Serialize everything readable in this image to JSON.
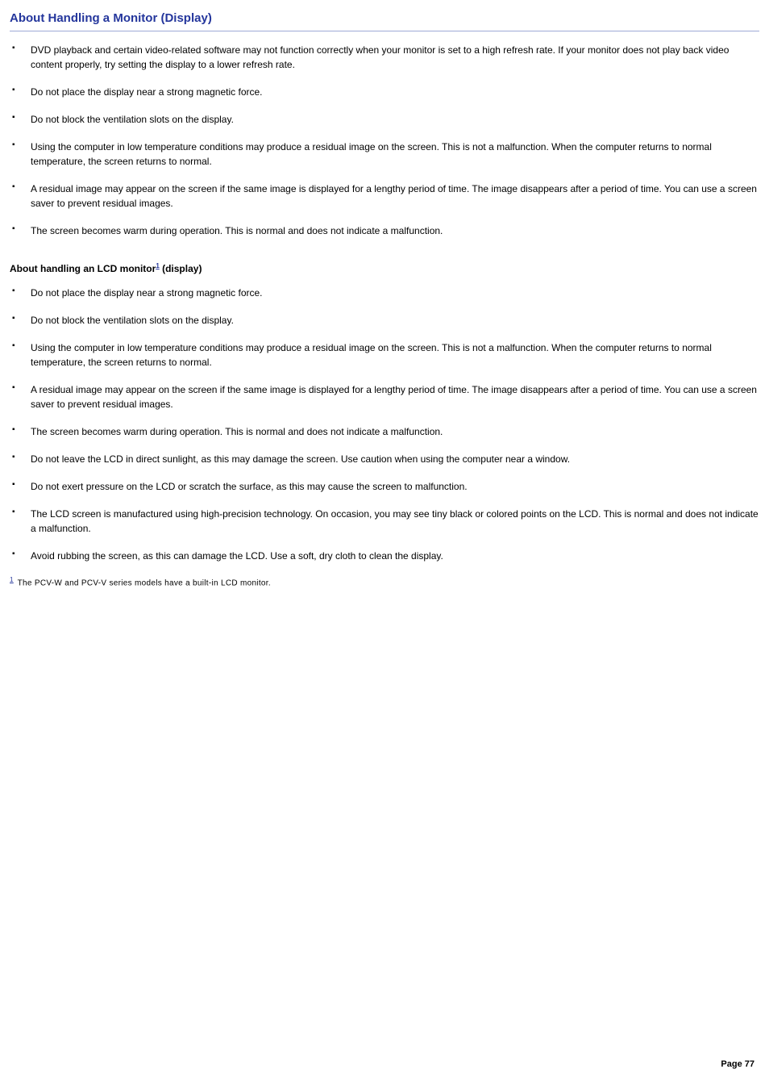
{
  "colors": {
    "heading": "#24369c",
    "rule": "#9fa9d6",
    "supLink": "#24369c",
    "bodyText": "#000000",
    "background": "#ffffff"
  },
  "heading": "About Handling a Monitor (Display)",
  "section1": {
    "items": [
      "DVD playback and certain video-related software may not function correctly when your monitor is set to a high refresh rate. If your monitor does not play back video content properly, try setting the display to a lower refresh rate.",
      "Do not place the display near a strong magnetic force.",
      "Do not block the ventilation slots on the display.",
      "Using the computer in low temperature conditions may produce a residual image on the screen. This is not a malfunction. When the computer returns to normal temperature, the screen returns to normal.",
      "A residual image may appear on the screen if the same image is displayed for a lengthy period of time. The image disappears after a period of time. You can use a screen saver to prevent residual images.",
      "The screen becomes warm during operation. This is normal and does not indicate a malfunction."
    ]
  },
  "subHeading": {
    "prefix": "About handling an LCD monitor",
    "supMarker": "1",
    "suffix": " (display)"
  },
  "section2": {
    "items": [
      "Do not place the display near a strong magnetic force.",
      "Do not block the ventilation slots on the display.",
      "Using the computer in low temperature conditions may produce a residual image on the screen. This is not a malfunction. When the computer returns to normal temperature, the screen returns to normal.",
      "A residual image may appear on the screen if the same image is displayed for a lengthy period of time. The image disappears after a period of time. You can use a screen saver to prevent residual images.",
      "The screen becomes warm during operation. This is normal and does not indicate a malfunction.",
      "Do not leave the LCD in direct sunlight, as this may damage the screen. Use caution when using the computer near a window.",
      "Do not exert pressure on the LCD or scratch the surface, as this may cause the screen to malfunction.",
      "The LCD screen is manufactured using high-precision technology. On occasion, you may see tiny black or colored points on the LCD. This is normal and does not indicate a malfunction.",
      "Avoid rubbing the screen, as this can damage the LCD. Use a soft, dry cloth to clean the display."
    ]
  },
  "footnote": {
    "marker": "1",
    "text": " The PCV-W and PCV-V series models have a built-in LCD monitor."
  },
  "pageNumber": "Page 77"
}
